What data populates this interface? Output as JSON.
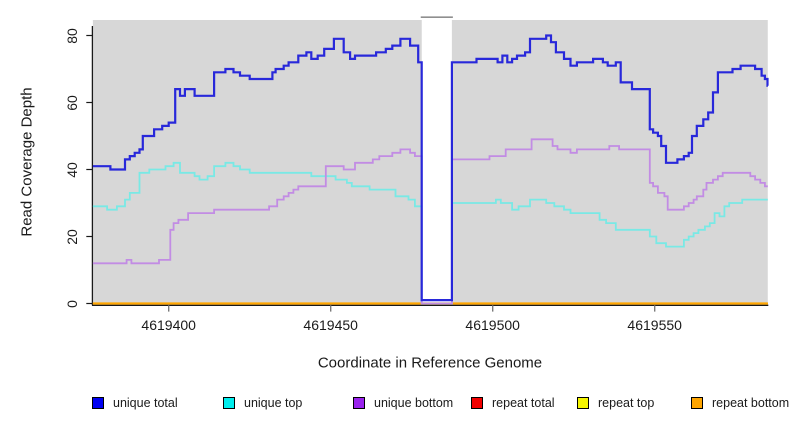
{
  "chart": {
    "y_axis_title": "Read Coverage Depth",
    "x_axis_title": "Coordinate in Reference Genome"
  },
  "colors": {
    "plot_background": "#d7d7d7",
    "axis_line": "#1a1a1a",
    "tick_mark": "#7a7a7a",
    "masked_region_fill": "#ffffff",
    "masked_region_top_edge": "#8f8f8f"
  },
  "chart_data": {
    "type": "line",
    "subtype": "step",
    "title": "",
    "xlabel": "Coordinate in Reference Genome",
    "ylabel": "Read Coverage Depth",
    "x_range": [
      4619376.6,
      4619584.9
    ],
    "y_range": [
      0,
      84
    ],
    "x_ticks": [
      4619400,
      4619450,
      4619500,
      4619550
    ],
    "y_ticks": [
      0,
      20,
      40,
      60,
      80
    ],
    "grid": false,
    "legend_position": "bottom",
    "masked_region": {
      "x_start": 4619478.1,
      "x_end": 4619487.4
    },
    "draw_order": [
      "repeat total",
      "repeat top",
      "repeat bottom",
      "unique top",
      "unique bottom",
      "unique total"
    ],
    "series": [
      {
        "name": "unique total",
        "line_color": "#2828da",
        "legend_color": "#0000f2",
        "stroke_width": 2.2,
        "points": [
          [
            4619376.6,
            41
          ],
          [
            4619382,
            40
          ],
          [
            4619386.5,
            43
          ],
          [
            4619388,
            44
          ],
          [
            4619389.5,
            45
          ],
          [
            4619391,
            46
          ],
          [
            4619392,
            50
          ],
          [
            4619395.5,
            52
          ],
          [
            4619398,
            53
          ],
          [
            4619400,
            54
          ],
          [
            4619402,
            64
          ],
          [
            4619403.5,
            62
          ],
          [
            4619405,
            64
          ],
          [
            4619408,
            62
          ],
          [
            4619414,
            69
          ],
          [
            4619417.5,
            70
          ],
          [
            4619420,
            69
          ],
          [
            4619422,
            68
          ],
          [
            4619425,
            67
          ],
          [
            4619432,
            69
          ],
          [
            4619433,
            70
          ],
          [
            4619435.5,
            71
          ],
          [
            4619437,
            72
          ],
          [
            4619440,
            74
          ],
          [
            4619442.5,
            75
          ],
          [
            4619444,
            73
          ],
          [
            4619446,
            74
          ],
          [
            4619448,
            76
          ],
          [
            4619451,
            79
          ],
          [
            4619454,
            75
          ],
          [
            4619456,
            73
          ],
          [
            4619457.5,
            74
          ],
          [
            4619464,
            75
          ],
          [
            4619467,
            76
          ],
          [
            4619469,
            77
          ],
          [
            4619471.5,
            79
          ],
          [
            4619474.5,
            77
          ],
          [
            4619477,
            72
          ],
          [
            4619478.1,
            1
          ],
          [
            4619487.4,
            72
          ],
          [
            4619495,
            73
          ],
          [
            4619501.5,
            72
          ],
          [
            4619503,
            74
          ],
          [
            4619504.5,
            72
          ],
          [
            4619506,
            73
          ],
          [
            4619507.5,
            74
          ],
          [
            4619510,
            75
          ],
          [
            4619511.5,
            79
          ],
          [
            4619516.5,
            80
          ],
          [
            4619518,
            78
          ],
          [
            4619519.5,
            75
          ],
          [
            4619522,
            73
          ],
          [
            4619524,
            71
          ],
          [
            4619526,
            72
          ],
          [
            4619531,
            73
          ],
          [
            4619534,
            72
          ],
          [
            4619535.5,
            71
          ],
          [
            4619538,
            72
          ],
          [
            4619539.5,
            66
          ],
          [
            4619543,
            64
          ],
          [
            4619548.5,
            52
          ],
          [
            4619549.5,
            51
          ],
          [
            4619551,
            50
          ],
          [
            4619552,
            47
          ],
          [
            4619553.5,
            42
          ],
          [
            4619557,
            43
          ],
          [
            4619559,
            44
          ],
          [
            4619560.5,
            45
          ],
          [
            4619561.5,
            50
          ],
          [
            4619563,
            53
          ],
          [
            4619565,
            55
          ],
          [
            4619566.5,
            57
          ],
          [
            4619568,
            63
          ],
          [
            4619569.5,
            69
          ],
          [
            4619574,
            70
          ],
          [
            4619576.5,
            71
          ],
          [
            4619581,
            70
          ],
          [
            4619583,
            68
          ],
          [
            4619584,
            67
          ],
          [
            4619584.8,
            65
          ]
        ]
      },
      {
        "name": "unique top",
        "line_color": "#79e9e5",
        "legend_color": "#00eeee",
        "stroke_width": 1.8,
        "points": [
          [
            4619376.6,
            29
          ],
          [
            4619381,
            28
          ],
          [
            4619384,
            29
          ],
          [
            4619386.5,
            31
          ],
          [
            4619388,
            33
          ],
          [
            4619391,
            39
          ],
          [
            4619394,
            40
          ],
          [
            4619399,
            41
          ],
          [
            4619401.5,
            42
          ],
          [
            4619403.5,
            39
          ],
          [
            4619408,
            38
          ],
          [
            4619409.5,
            37
          ],
          [
            4619412,
            38
          ],
          [
            4619414,
            41
          ],
          [
            4619417.5,
            42
          ],
          [
            4619420,
            41
          ],
          [
            4619422,
            40
          ],
          [
            4619425,
            39
          ],
          [
            4619444,
            38
          ],
          [
            4619451.5,
            37
          ],
          [
            4619455,
            36
          ],
          [
            4619456.5,
            35
          ],
          [
            4619462,
            34
          ],
          [
            4619470,
            32
          ],
          [
            4619474,
            31
          ],
          [
            4619476,
            29
          ],
          [
            4619478.1,
            0
          ],
          [
            4619487.4,
            30
          ],
          [
            4619501,
            31
          ],
          [
            4619502.5,
            30
          ],
          [
            4619506,
            28
          ],
          [
            4619508,
            29
          ],
          [
            4619511.5,
            31
          ],
          [
            4619516.5,
            30
          ],
          [
            4619519,
            29
          ],
          [
            4619522,
            28
          ],
          [
            4619524,
            27
          ],
          [
            4619533,
            25
          ],
          [
            4619535,
            24
          ],
          [
            4619538,
            22
          ],
          [
            4619548.5,
            20
          ],
          [
            4619550.5,
            18
          ],
          [
            4619553.5,
            17
          ],
          [
            4619559,
            19
          ],
          [
            4619560.5,
            20
          ],
          [
            4619562,
            21
          ],
          [
            4619563.5,
            22
          ],
          [
            4619565.5,
            23
          ],
          [
            4619567,
            24
          ],
          [
            4619568.5,
            27
          ],
          [
            4619570,
            26
          ],
          [
            4619571.5,
            29
          ],
          [
            4619573,
            30
          ],
          [
            4619577,
            31
          ]
        ]
      },
      {
        "name": "unique bottom",
        "line_color": "#c28ce4",
        "legend_color": "#9a23ee",
        "stroke_width": 1.8,
        "points": [
          [
            4619376.6,
            12
          ],
          [
            4619387,
            13
          ],
          [
            4619388.5,
            12
          ],
          [
            4619397,
            13
          ],
          [
            4619400.5,
            22
          ],
          [
            4619401.5,
            24
          ],
          [
            4619403,
            25
          ],
          [
            4619406,
            27
          ],
          [
            4619414,
            28
          ],
          [
            4619431,
            29
          ],
          [
            4619433.5,
            31
          ],
          [
            4619435.5,
            32
          ],
          [
            4619437,
            33
          ],
          [
            4619438.5,
            34
          ],
          [
            4619440,
            35
          ],
          [
            4619448.5,
            41
          ],
          [
            4619454,
            40
          ],
          [
            4619457.5,
            42
          ],
          [
            4619463,
            43
          ],
          [
            4619465,
            44
          ],
          [
            4619469,
            45
          ],
          [
            4619471.5,
            46
          ],
          [
            4619474.5,
            45
          ],
          [
            4619476,
            44
          ],
          [
            4619478.1,
            0
          ],
          [
            4619487.4,
            43
          ],
          [
            4619499,
            44
          ],
          [
            4619504,
            46
          ],
          [
            4619512,
            49
          ],
          [
            4619518.5,
            47
          ],
          [
            4619520,
            46
          ],
          [
            4619524,
            45
          ],
          [
            4619526,
            46
          ],
          [
            4619536,
            47
          ],
          [
            4619539,
            46
          ],
          [
            4619548.5,
            36
          ],
          [
            4619549.5,
            35
          ],
          [
            4619551,
            33
          ],
          [
            4619553,
            32
          ],
          [
            4619554,
            28
          ],
          [
            4619559,
            29
          ],
          [
            4619560.5,
            30
          ],
          [
            4619562,
            31
          ],
          [
            4619563,
            32
          ],
          [
            4619565,
            34
          ],
          [
            4619566,
            36
          ],
          [
            4619568,
            37
          ],
          [
            4619569.5,
            38
          ],
          [
            4619571,
            39
          ],
          [
            4619579.5,
            38
          ],
          [
            4619581,
            37
          ],
          [
            4619582.6,
            36
          ],
          [
            4619584,
            35
          ]
        ]
      },
      {
        "name": "repeat total",
        "line_color": "#f20000",
        "legend_color": "#f20000",
        "stroke_width": 1.8,
        "points": [
          [
            4619376.6,
            0
          ]
        ]
      },
      {
        "name": "repeat top",
        "line_color": "#f5f500",
        "legend_color": "#f5f500",
        "stroke_width": 1.8,
        "points": [
          [
            4619376.6,
            0
          ]
        ]
      },
      {
        "name": "repeat bottom",
        "line_color": "#ffa500",
        "legend_color": "#ffa500",
        "stroke_width": 2.2,
        "points": [
          [
            4619376.6,
            0
          ]
        ]
      }
    ]
  }
}
